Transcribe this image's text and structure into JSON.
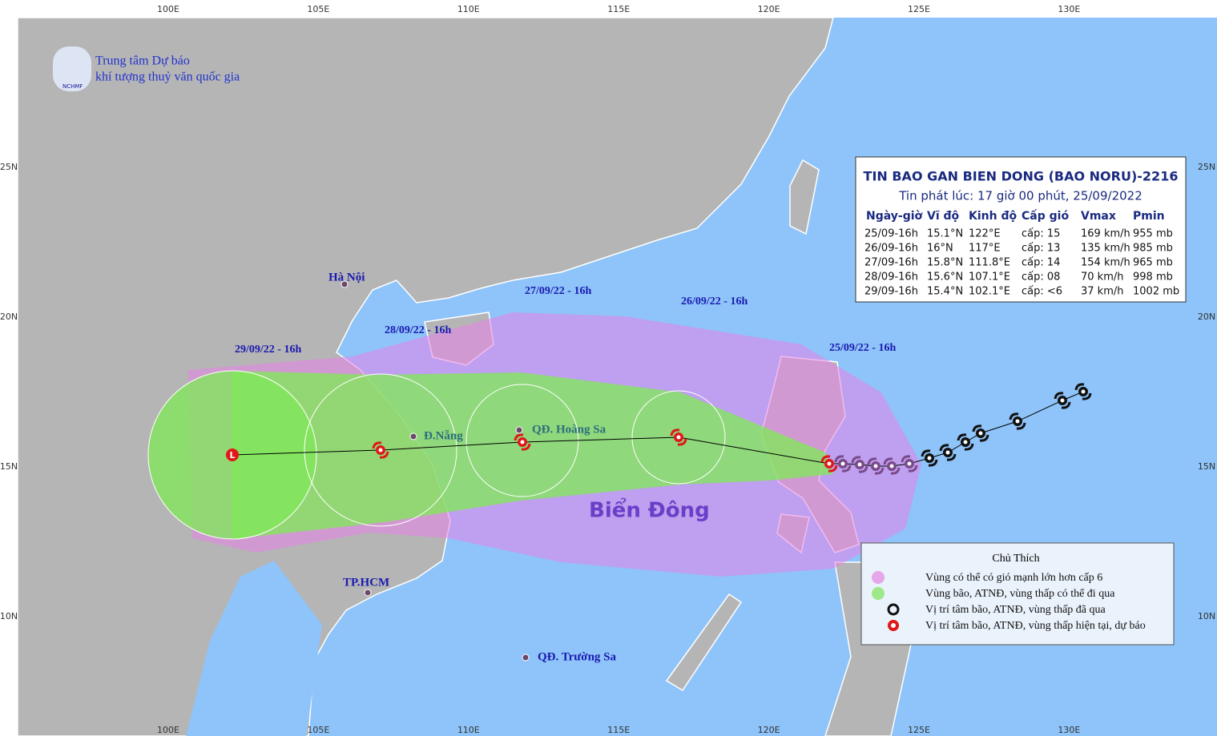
{
  "logo": {
    "line1": "Trung tâm Dự báo",
    "line2": "khí tượng thuỷ văn quốc gia",
    "abbr": "NCHMF"
  },
  "axes": {
    "lon": [
      "100E",
      "105E",
      "110E",
      "115E",
      "120E",
      "125E",
      "130E"
    ],
    "lat": [
      "25N",
      "20N",
      "15N",
      "10N"
    ]
  },
  "bulletin": {
    "title": "TIN BAO GAN BIEN DONG (BAO NORU)-2216",
    "issued": "Tin phát lúc: 17 giờ 00 phút, 25/09/2022",
    "columns": [
      "Ngày-giờ",
      "Vĩ độ",
      "Kinh độ",
      "Cấp gió",
      "Vmax",
      "Pmin"
    ],
    "rows": [
      [
        "25/09-16h",
        "15.1°N",
        "122°E",
        "cấp: 15",
        "169 km/h",
        "955 mb"
      ],
      [
        "26/09-16h",
        "16°N",
        "117°E",
        "cấp: 13",
        "135 km/h",
        "985 mb"
      ],
      [
        "27/09-16h",
        "15.8°N",
        "111.8°E",
        "cấp: 14",
        "154 km/h",
        "965 mb"
      ],
      [
        "28/09-16h",
        "15.6°N",
        "107.1°E",
        "cấp: 08",
        "70 km/h",
        "998 mb"
      ],
      [
        "29/09-16h",
        "15.4°N",
        "102.1°E",
        "cấp: <6",
        "37 km/h",
        "1002 mb"
      ]
    ]
  },
  "legend": {
    "title": "Chủ Thích",
    "items": [
      "Vùng có thể có gió mạnh lớn hơn cấp 6",
      "Vùng bão, ATNĐ, vùng thấp có thể đi qua",
      "Vị trí tâm bão, ATNĐ, vùng thấp đã qua",
      "Vị trí tâm bão, ATNĐ, vùng thấp hiện tại, dự báo"
    ]
  },
  "low_symbol": "L",
  "track_labels": [
    "29/09/22 - 16h",
    "28/09/22 - 16h",
    "27/09/22 - 16h",
    "26/09/22 - 16h",
    "25/09/22 - 16h"
  ],
  "places": [
    "Hà Nội",
    "Đ.Nẵng",
    "QĐ. Hoàng Sa",
    "TP.HCM",
    "QĐ. Trường Sa"
  ],
  "sea_label": "Biển Đông"
}
